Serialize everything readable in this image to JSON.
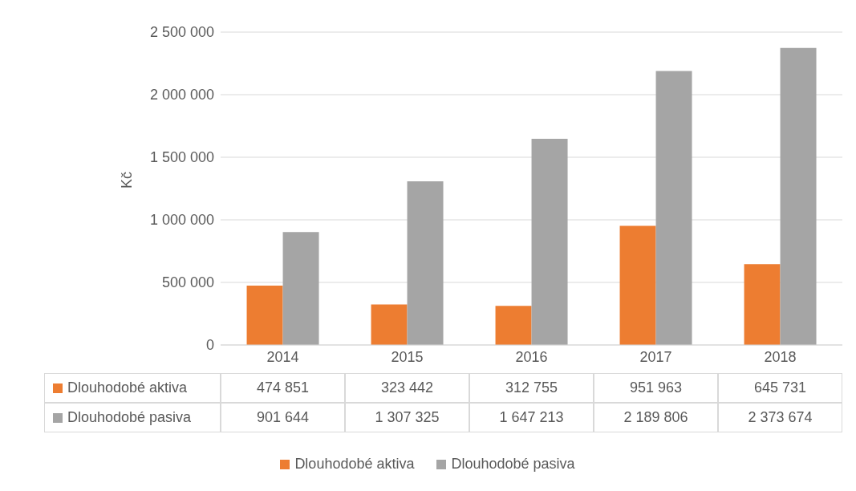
{
  "chart_data": {
    "type": "bar",
    "ylabel": "Kč",
    "categories": [
      "2014",
      "2015",
      "2016",
      "2017",
      "2018"
    ],
    "series": [
      {
        "name": "Dlouhodobé aktiva",
        "color": "#ed7d31",
        "values": [
          474851,
          323442,
          312755,
          951963,
          645731
        ]
      },
      {
        "name": "Dlouhodobé pasiva",
        "color": "#a5a5a5",
        "values": [
          901644,
          1307325,
          1647213,
          2189806,
          2373674
        ]
      }
    ],
    "ylim": [
      0,
      2500000
    ],
    "yticks": [
      0,
      500000,
      1000000,
      1500000,
      2000000,
      2500000
    ],
    "grid": "y",
    "legend": "bottom",
    "data_labels": true
  }
}
